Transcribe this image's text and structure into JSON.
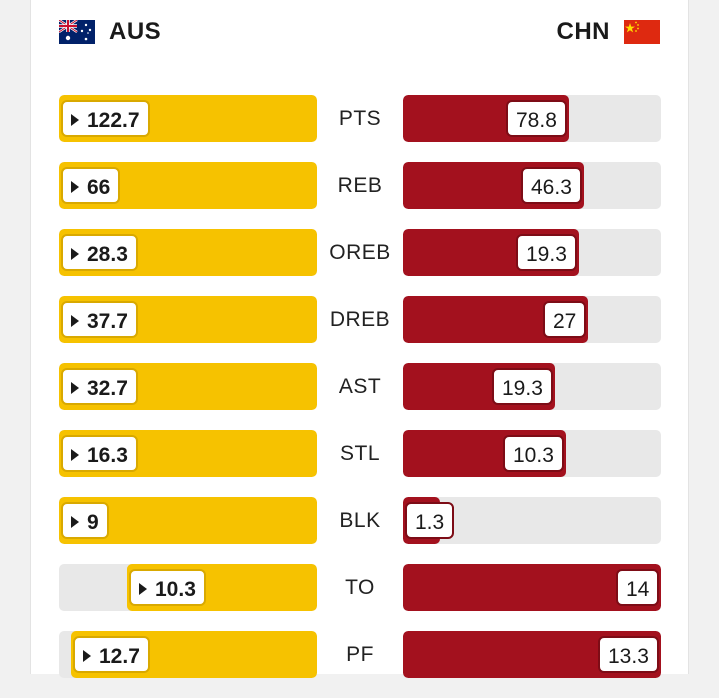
{
  "teams": {
    "left": {
      "name": "AUS",
      "flag_icon": "australia-flag-icon"
    },
    "right": {
      "name": "CHN",
      "flag_icon": "china-flag-icon"
    }
  },
  "colors": {
    "aus_bar": "#f6c200",
    "chn_bar": "#a3111e",
    "track": "#e8e8e8"
  },
  "stats": [
    {
      "label": "PTS",
      "aus": "122.7",
      "chn": "78.8",
      "aus_share": 1.0,
      "chn_share": 0.642
    },
    {
      "label": "REB",
      "aus": "66",
      "chn": "46.3",
      "aus_share": 1.0,
      "chn_share": 0.702
    },
    {
      "label": "OREB",
      "aus": "28.3",
      "chn": "19.3",
      "aus_share": 1.0,
      "chn_share": 0.682
    },
    {
      "label": "DREB",
      "aus": "37.7",
      "chn": "27",
      "aus_share": 1.0,
      "chn_share": 0.716
    },
    {
      "label": "AST",
      "aus": "32.7",
      "chn": "19.3",
      "aus_share": 1.0,
      "chn_share": 0.59
    },
    {
      "label": "STL",
      "aus": "16.3",
      "chn": "10.3",
      "aus_share": 1.0,
      "chn_share": 0.632
    },
    {
      "label": "BLK",
      "aus": "9",
      "chn": "1.3",
      "aus_share": 1.0,
      "chn_share": 0.144
    },
    {
      "label": "TO",
      "aus": "10.3",
      "chn": "14",
      "aus_share": 0.736,
      "chn_share": 1.0
    },
    {
      "label": "PF",
      "aus": "12.7",
      "chn": "13.3",
      "aus_share": 0.955,
      "chn_share": 1.0
    }
  ]
}
